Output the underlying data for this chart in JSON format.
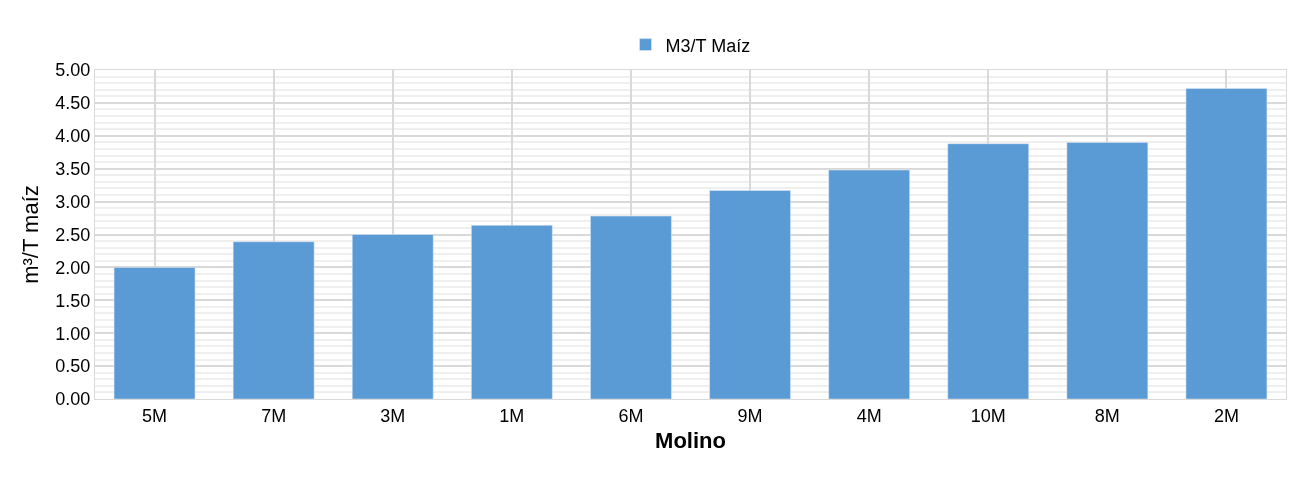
{
  "chart_data": {
    "type": "bar",
    "xlabel": "Molino",
    "ylabel": "m³/T maíz",
    "categories": [
      "5M",
      "7M",
      "3M",
      "1M",
      "6M",
      "9M",
      "4M",
      "10M",
      "8M",
      "2M"
    ],
    "series": [
      {
        "name": "M3/T Maíz",
        "color": "#5b9bd5",
        "values": [
          2.0,
          2.39,
          2.5,
          2.64,
          2.78,
          3.17,
          3.48,
          3.88,
          3.9,
          4.72
        ]
      }
    ],
    "ylim": [
      0,
      5
    ],
    "yticks": [
      {
        "value": 0,
        "label": "0.00"
      },
      {
        "value": 0.5,
        "label": "0.50"
      },
      {
        "value": 1,
        "label": "1.00"
      },
      {
        "value": 1.5,
        "label": "1.50"
      },
      {
        "value": 2,
        "label": "2.00"
      },
      {
        "value": 2.5,
        "label": "2.50"
      },
      {
        "value": 3,
        "label": "3.00"
      },
      {
        "value": 3.5,
        "label": "3.50"
      },
      {
        "value": 4,
        "label": "4.00"
      },
      {
        "value": 4.5,
        "label": "4.50"
      },
      {
        "value": 5,
        "label": "5.00"
      }
    ],
    "grid": true,
    "legend": "top"
  }
}
